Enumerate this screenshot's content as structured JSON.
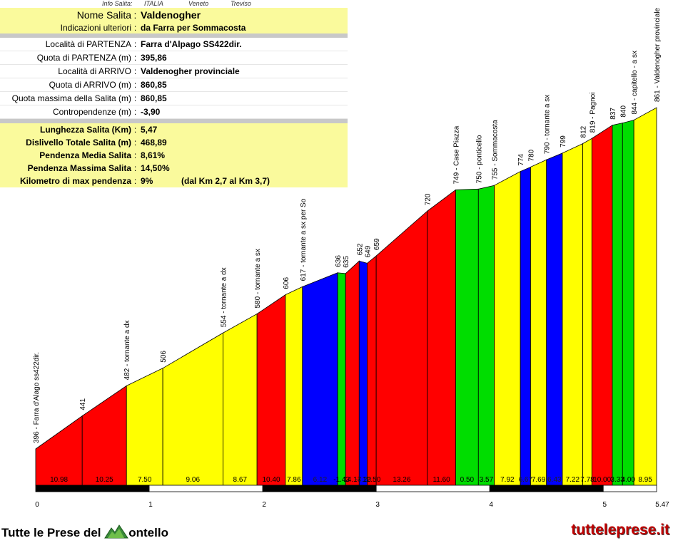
{
  "info": {
    "header": {
      "label": "Info Salita:",
      "country": "ITALIA",
      "region": "Veneto",
      "province": "Treviso"
    },
    "nome_label": "Nome Salita",
    "nome_value": "Valdenogher",
    "indicazioni_label": "Indicazioni ulteriori",
    "indicazioni_value": "da Farra per Sommacosta",
    "partenza_label": "Località di PARTENZA",
    "partenza_value": "Farra d'Alpago SS422dir.",
    "quota_partenza_label": "Quota di PARTENZA (m)",
    "quota_partenza_value": "395,86",
    "arrivo_label": "Località di ARRIVO",
    "arrivo_value": "Valdenogher provinciale",
    "quota_arrivo_label": "Quota di ARRIVO (m)",
    "quota_arrivo_value": "860,85",
    "quota_max_label": "Quota massima della Salita (m)",
    "quota_max_value": "860,85",
    "contropendenze_label": "Contropendenze (m)",
    "contropendenze_value": "-3,90",
    "lunghezza_label": "Lunghezza Salita (Km)",
    "lunghezza_value": "5,47",
    "dislivello_label": "Dislivello Totale Salita (m)",
    "dislivello_value": "468,89",
    "pendenza_media_label": "Pendenza Media Salita",
    "pendenza_media_value": "8,61%",
    "pendenza_max_label": "Pendenza Massima Salita",
    "pendenza_max_value": "14,50%",
    "km_max_label": "Kilometro di max pendenza",
    "km_max_value": "9%",
    "km_max_range": "(dal Km 2,7 al Km 3,7)",
    "sep": ":"
  },
  "chart_data": {
    "type": "area",
    "xlabel": "",
    "ylabel": "",
    "x_ticks": [
      "0",
      "1",
      "2",
      "3",
      "4",
      "5",
      "5.47"
    ],
    "x_tick_values": [
      0,
      1,
      2,
      3,
      4,
      5,
      5.47
    ],
    "xlim": [
      0,
      5.47
    ],
    "slope_colors": {
      "yellow": "#ffff00",
      "red": "#ff0000",
      "green": "#00dd00",
      "blue": "#0000ff"
    },
    "points": [
      {
        "km": 0.0,
        "alt": 396,
        "label": "396 - Farra d'Alago ss422dir."
      },
      {
        "km": 0.41,
        "alt": 441,
        "label": "441"
      },
      {
        "km": 0.8,
        "alt": 482,
        "label": "482 - tornante a dx"
      },
      {
        "km": 1.12,
        "alt": 506,
        "label": "506"
      },
      {
        "km": 1.65,
        "alt": 554,
        "label": "554 - tornante a dx"
      },
      {
        "km": 1.95,
        "alt": 580,
        "label": "580 - tornante a sx"
      },
      {
        "km": 2.2,
        "alt": 606,
        "label": "606"
      },
      {
        "km": 2.35,
        "alt": 617,
        "label": "617 - tornante a sx per So"
      },
      {
        "km": 2.66,
        "alt": 636,
        "label": "636"
      },
      {
        "km": 2.73,
        "alt": 635,
        "label": "635"
      },
      {
        "km": 2.85,
        "alt": 652,
        "label": "652"
      },
      {
        "km": 2.92,
        "alt": 649,
        "label": "649"
      },
      {
        "km": 3.0,
        "alt": 659,
        "label": "659"
      },
      {
        "km": 3.45,
        "alt": 720,
        "label": "720"
      },
      {
        "km": 3.7,
        "alt": 749,
        "label": "749 - Case Piazza"
      },
      {
        "km": 3.9,
        "alt": 750,
        "label": "750 - ponticello"
      },
      {
        "km": 4.04,
        "alt": 755,
        "label": "755 - Sommacosta"
      },
      {
        "km": 4.27,
        "alt": 774,
        "label": "774"
      },
      {
        "km": 4.36,
        "alt": 780,
        "label": "780"
      },
      {
        "km": 4.5,
        "alt": 790,
        "label": "790 - tornante a sx"
      },
      {
        "km": 4.64,
        "alt": 799,
        "label": "799"
      },
      {
        "km": 4.82,
        "alt": 812,
        "label": "812"
      },
      {
        "km": 4.9,
        "alt": 819,
        "label": "819 - Pagnoi"
      },
      {
        "km": 5.08,
        "alt": 837,
        "label": "837"
      },
      {
        "km": 5.17,
        "alt": 840,
        "label": "840"
      },
      {
        "km": 5.27,
        "alt": 844,
        "label": "844 - capitello - a sx"
      },
      {
        "km": 5.47,
        "alt": 861,
        "label": "861 - Valdenogher provinciale"
      }
    ],
    "segments": [
      {
        "grade": "10.98",
        "color": "red"
      },
      {
        "grade": "10.25",
        "color": "red"
      },
      {
        "grade": "7.50",
        "color": "yellow"
      },
      {
        "grade": "9.06",
        "color": "yellow"
      },
      {
        "grade": "8.67",
        "color": "yellow"
      },
      {
        "grade": "10.40",
        "color": "red"
      },
      {
        "grade": "7.86",
        "color": "yellow"
      },
      {
        "grade": "6.12",
        "color": "blue"
      },
      {
        "grade": "-1.43",
        "color": "green"
      },
      {
        "grade": "14.17",
        "color": "red"
      },
      {
        "grade": "-4.20",
        "color": "blue"
      },
      {
        "grade": "12.50",
        "color": "red"
      },
      {
        "grade": "13.26",
        "color": "red"
      },
      {
        "grade": "11.60",
        "color": "red"
      },
      {
        "grade": "0.50",
        "color": "green"
      },
      {
        "grade": "3.57",
        "color": "green"
      },
      {
        "grade": "7.92",
        "color": "yellow"
      },
      {
        "grade": "6.67",
        "color": "blue"
      },
      {
        "grade": "7.69",
        "color": "yellow"
      },
      {
        "grade": "6.43",
        "color": "blue"
      },
      {
        "grade": "7.22",
        "color": "yellow"
      },
      {
        "grade": "7.78",
        "color": "yellow"
      },
      {
        "grade": "10.00",
        "color": "red"
      },
      {
        "grade": "3.33",
        "color": "green"
      },
      {
        "grade": "4.00",
        "color": "green"
      },
      {
        "grade": "8.95",
        "color": "yellow"
      }
    ]
  },
  "footer": {
    "left_text_a": "Tutte le Prese del ",
    "left_text_b": "ontello",
    "right_text": "tutteleprese.it"
  }
}
